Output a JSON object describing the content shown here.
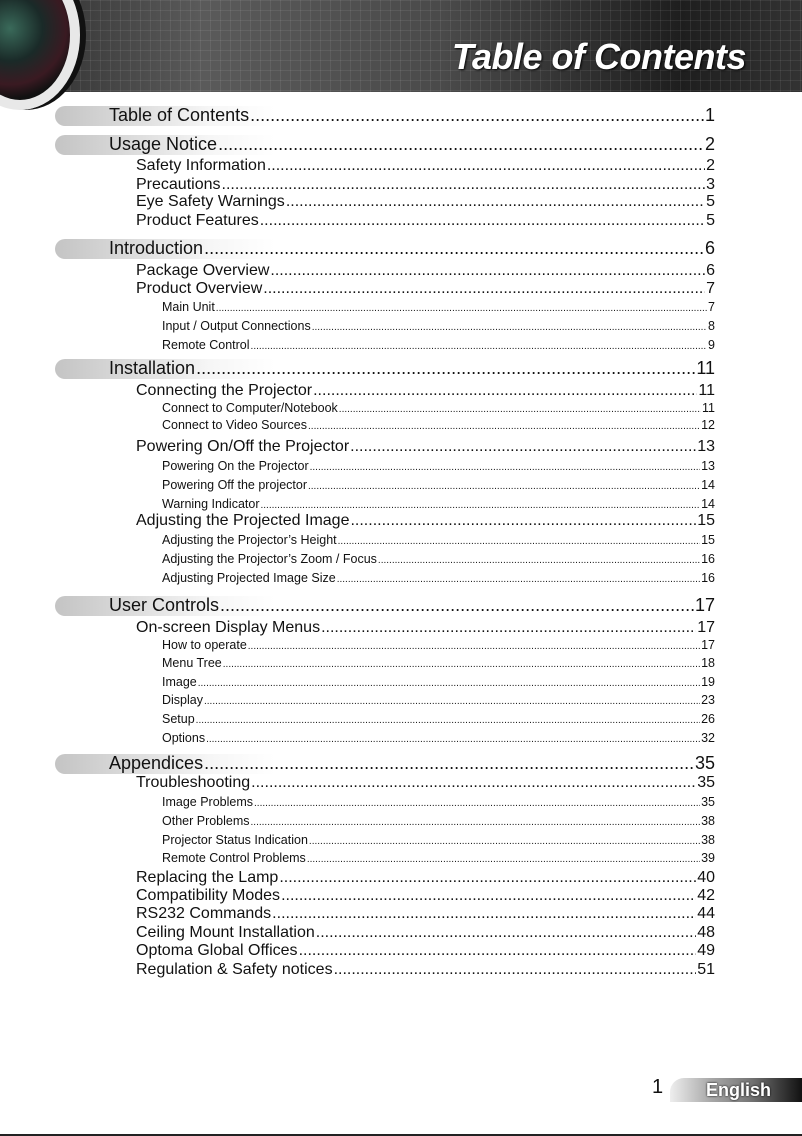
{
  "header": {
    "title": "Table of Contents"
  },
  "toc": [
    {
      "level": 1,
      "label": "Table of Contents",
      "page": "1"
    },
    {
      "level": 1,
      "label": "Usage Notice",
      "page": "2"
    },
    {
      "level": 2,
      "label": "Safety Information",
      "page": "2"
    },
    {
      "level": 2,
      "label": "Precautions",
      "page": "3"
    },
    {
      "level": 2,
      "label": "Eye Safety Warnings",
      "page": "5"
    },
    {
      "level": 2,
      "label": "Product Features",
      "page": "5"
    },
    {
      "level": 1,
      "label": "Introduction",
      "page": "6"
    },
    {
      "level": 2,
      "label": "Package Overview",
      "page": "6"
    },
    {
      "level": 2,
      "label": "Product Overview",
      "page": "7"
    },
    {
      "level": 3,
      "label": "Main Unit",
      "page": "7"
    },
    {
      "level": 3,
      "label": "Input / Output Connections",
      "page": "8"
    },
    {
      "level": 3,
      "label": "Remote Control",
      "page": "9"
    },
    {
      "level": 1,
      "label": "Installation",
      "page": "11"
    },
    {
      "level": 2,
      "label": "Connecting the Projector",
      "page": "11"
    },
    {
      "level": 3,
      "label": "Connect to Computer/Notebook",
      "page": "11"
    },
    {
      "level": 3,
      "label": "Connect to Video Sources",
      "page": "12"
    },
    {
      "level": 2,
      "label": "Powering On/Off the Projector",
      "page": "13"
    },
    {
      "level": 3,
      "label": "Powering On the Projector",
      "page": "13"
    },
    {
      "level": 3,
      "label": "Powering Off the projector",
      "page": "14"
    },
    {
      "level": 3,
      "label": "Warning Indicator",
      "page": "14"
    },
    {
      "level": 2,
      "label": "Adjusting the Projected Image",
      "page": "15"
    },
    {
      "level": 3,
      "label": "Adjusting the Projector’s Height",
      "page": "15"
    },
    {
      "level": 3,
      "label": "Adjusting the Projector’s Zoom / Focus",
      "page": "16"
    },
    {
      "level": 3,
      "label": "Adjusting Projected Image Size",
      "page": "16"
    },
    {
      "level": 1,
      "label": "User Controls",
      "page": "17"
    },
    {
      "level": 2,
      "label": "On-screen Display Menus",
      "page": "17"
    },
    {
      "level": 3,
      "label": "How to operate",
      "page": "17"
    },
    {
      "level": 3,
      "label": "Menu Tree",
      "page": "18"
    },
    {
      "level": 3,
      "label": "Image",
      "page": "19"
    },
    {
      "level": 3,
      "label": "Display",
      "page": "23"
    },
    {
      "level": 3,
      "label": "Setup",
      "page": "26"
    },
    {
      "level": 3,
      "label": "Options",
      "page": "32"
    },
    {
      "level": 1,
      "label": "Appendices",
      "page": "35"
    },
    {
      "level": 2,
      "label": "Troubleshooting",
      "page": "35"
    },
    {
      "level": 3,
      "label": "Image Problems",
      "page": "35"
    },
    {
      "level": 3,
      "label": "Other Problems",
      "page": "38"
    },
    {
      "level": 3,
      "label": "Projector Status Indication",
      "page": "38"
    },
    {
      "level": 3,
      "label": "Remote Control Problems",
      "page": "39"
    },
    {
      "level": 2,
      "label": "Replacing the Lamp",
      "page": "40"
    },
    {
      "level": 2,
      "label": "Compatibility Modes",
      "page": "42"
    },
    {
      "level": 2,
      "label": "RS232 Commands",
      "page": "44"
    },
    {
      "level": 2,
      "label": "Ceiling Mount Installation",
      "page": "48"
    },
    {
      "level": 2,
      "label": "Optoma Global Offices",
      "page": "49"
    },
    {
      "level": 2,
      "label": "Regulation & Safety notices",
      "page": "51"
    }
  ],
  "footer": {
    "page_number": "1",
    "language": "English"
  }
}
